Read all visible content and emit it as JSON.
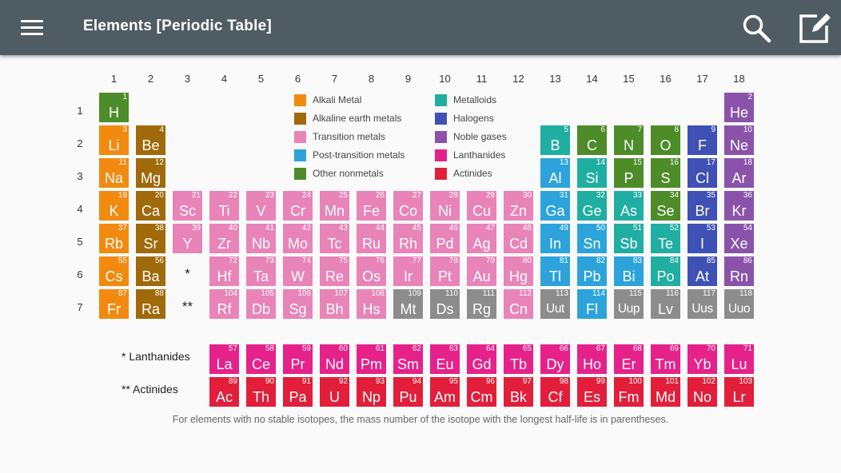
{
  "app_title": "Elements [Periodic Table]",
  "colors": {
    "alkali": "#f28a0f",
    "alkaline": "#a06a0a",
    "transition": "#e884b8",
    "post": "#2da3db",
    "nonmetal": "#4d8c28",
    "metalloid": "#20aea2",
    "halogen": "#3f51b5",
    "noble": "#8a53a9",
    "lanthanide": "#e6218a",
    "actinide": "#e21e3a",
    "unknown": "#8c8c8c"
  },
  "legend": [
    {
      "key": "alkali",
      "label": "Alkali Metal"
    },
    {
      "key": "alkaline",
      "label": "Alkaline earth metals"
    },
    {
      "key": "transition",
      "label": "Transition metals"
    },
    {
      "key": "post",
      "label": "Post-transition metals"
    },
    {
      "key": "nonmetal",
      "label": "Other nonmetals"
    },
    {
      "key": "metalloid",
      "label": "Metalloids"
    },
    {
      "key": "halogen",
      "label": "Halogens"
    },
    {
      "key": "noble",
      "label": "Noble gases"
    },
    {
      "key": "lanthanide",
      "label": "Lanthanides"
    },
    {
      "key": "actinide",
      "label": "Actinides"
    }
  ],
  "group_numbers": [
    "1",
    "2",
    "3",
    "4",
    "5",
    "6",
    "7",
    "8",
    "9",
    "10",
    "11",
    "12",
    "13",
    "14",
    "15",
    "16",
    "17",
    "18"
  ],
  "period_numbers": [
    "1",
    "2",
    "3",
    "4",
    "5",
    "6",
    "7"
  ],
  "placeholders": {
    "lanthanide_mark": "*",
    "actinide_mark": "**"
  },
  "series_labels": {
    "lanthanides": "* Lanthanides",
    "actinides": "** Actinides"
  },
  "footnote": "For elements with no stable isotopes, the mass number of the isotope with the longest half-life is in parentheses.",
  "elements": [
    {
      "n": 1,
      "s": "H",
      "c": "nonmetal",
      "g": 1,
      "p": 1
    },
    {
      "n": 2,
      "s": "He",
      "c": "noble",
      "g": 18,
      "p": 1
    },
    {
      "n": 3,
      "s": "Li",
      "c": "alkali",
      "g": 1,
      "p": 2
    },
    {
      "n": 4,
      "s": "Be",
      "c": "alkaline",
      "g": 2,
      "p": 2
    },
    {
      "n": 5,
      "s": "B",
      "c": "metalloid",
      "g": 13,
      "p": 2
    },
    {
      "n": 6,
      "s": "C",
      "c": "nonmetal",
      "g": 14,
      "p": 2
    },
    {
      "n": 7,
      "s": "N",
      "c": "nonmetal",
      "g": 15,
      "p": 2
    },
    {
      "n": 8,
      "s": "O",
      "c": "nonmetal",
      "g": 16,
      "p": 2
    },
    {
      "n": 9,
      "s": "F",
      "c": "halogen",
      "g": 17,
      "p": 2
    },
    {
      "n": 10,
      "s": "Ne",
      "c": "noble",
      "g": 18,
      "p": 2
    },
    {
      "n": 11,
      "s": "Na",
      "c": "alkali",
      "g": 1,
      "p": 3
    },
    {
      "n": 12,
      "s": "Mg",
      "c": "alkaline",
      "g": 2,
      "p": 3
    },
    {
      "n": 13,
      "s": "Al",
      "c": "post",
      "g": 13,
      "p": 3
    },
    {
      "n": 14,
      "s": "Si",
      "c": "metalloid",
      "g": 14,
      "p": 3
    },
    {
      "n": 15,
      "s": "P",
      "c": "nonmetal",
      "g": 15,
      "p": 3
    },
    {
      "n": 16,
      "s": "S",
      "c": "nonmetal",
      "g": 16,
      "p": 3
    },
    {
      "n": 17,
      "s": "Cl",
      "c": "halogen",
      "g": 17,
      "p": 3
    },
    {
      "n": 18,
      "s": "Ar",
      "c": "noble",
      "g": 18,
      "p": 3
    },
    {
      "n": 19,
      "s": "K",
      "c": "alkali",
      "g": 1,
      "p": 4
    },
    {
      "n": 20,
      "s": "Ca",
      "c": "alkaline",
      "g": 2,
      "p": 4
    },
    {
      "n": 21,
      "s": "Sc",
      "c": "transition",
      "g": 3,
      "p": 4
    },
    {
      "n": 22,
      "s": "Ti",
      "c": "transition",
      "g": 4,
      "p": 4
    },
    {
      "n": 23,
      "s": "V",
      "c": "transition",
      "g": 5,
      "p": 4
    },
    {
      "n": 24,
      "s": "Cr",
      "c": "transition",
      "g": 6,
      "p": 4
    },
    {
      "n": 25,
      "s": "Mn",
      "c": "transition",
      "g": 7,
      "p": 4
    },
    {
      "n": 26,
      "s": "Fe",
      "c": "transition",
      "g": 8,
      "p": 4
    },
    {
      "n": 27,
      "s": "Co",
      "c": "transition",
      "g": 9,
      "p": 4
    },
    {
      "n": 28,
      "s": "Ni",
      "c": "transition",
      "g": 10,
      "p": 4
    },
    {
      "n": 29,
      "s": "Cu",
      "c": "transition",
      "g": 11,
      "p": 4
    },
    {
      "n": 30,
      "s": "Zn",
      "c": "transition",
      "g": 12,
      "p": 4
    },
    {
      "n": 31,
      "s": "Ga",
      "c": "post",
      "g": 13,
      "p": 4
    },
    {
      "n": 32,
      "s": "Ge",
      "c": "metalloid",
      "g": 14,
      "p": 4
    },
    {
      "n": 33,
      "s": "As",
      "c": "metalloid",
      "g": 15,
      "p": 4
    },
    {
      "n": 34,
      "s": "Se",
      "c": "nonmetal",
      "g": 16,
      "p": 4
    },
    {
      "n": 35,
      "s": "Br",
      "c": "halogen",
      "g": 17,
      "p": 4
    },
    {
      "n": 36,
      "s": "Kr",
      "c": "noble",
      "g": 18,
      "p": 4
    },
    {
      "n": 37,
      "s": "Rb",
      "c": "alkali",
      "g": 1,
      "p": 5
    },
    {
      "n": 38,
      "s": "Sr",
      "c": "alkaline",
      "g": 2,
      "p": 5
    },
    {
      "n": 39,
      "s": "Y",
      "c": "transition",
      "g": 3,
      "p": 5
    },
    {
      "n": 40,
      "s": "Zr",
      "c": "transition",
      "g": 4,
      "p": 5
    },
    {
      "n": 41,
      "s": "Nb",
      "c": "transition",
      "g": 5,
      "p": 5
    },
    {
      "n": 42,
      "s": "Mo",
      "c": "transition",
      "g": 6,
      "p": 5
    },
    {
      "n": 43,
      "s": "Tc",
      "c": "transition",
      "g": 7,
      "p": 5
    },
    {
      "n": 44,
      "s": "Ru",
      "c": "transition",
      "g": 8,
      "p": 5
    },
    {
      "n": 45,
      "s": "Rh",
      "c": "transition",
      "g": 9,
      "p": 5
    },
    {
      "n": 46,
      "s": "Pd",
      "c": "transition",
      "g": 10,
      "p": 5
    },
    {
      "n": 47,
      "s": "Ag",
      "c": "transition",
      "g": 11,
      "p": 5
    },
    {
      "n": 48,
      "s": "Cd",
      "c": "transition",
      "g": 12,
      "p": 5
    },
    {
      "n": 49,
      "s": "In",
      "c": "post",
      "g": 13,
      "p": 5
    },
    {
      "n": 50,
      "s": "Sn",
      "c": "post",
      "g": 14,
      "p": 5
    },
    {
      "n": 51,
      "s": "Sb",
      "c": "metalloid",
      "g": 15,
      "p": 5
    },
    {
      "n": 52,
      "s": "Te",
      "c": "metalloid",
      "g": 16,
      "p": 5
    },
    {
      "n": 53,
      "s": "I",
      "c": "halogen",
      "g": 17,
      "p": 5
    },
    {
      "n": 54,
      "s": "Xe",
      "c": "noble",
      "g": 18,
      "p": 5
    },
    {
      "n": 55,
      "s": "Cs",
      "c": "alkali",
      "g": 1,
      "p": 6
    },
    {
      "n": 56,
      "s": "Ba",
      "c": "alkaline",
      "g": 2,
      "p": 6
    },
    {
      "n": 72,
      "s": "Hf",
      "c": "transition",
      "g": 4,
      "p": 6
    },
    {
      "n": 73,
      "s": "Ta",
      "c": "transition",
      "g": 5,
      "p": 6
    },
    {
      "n": 74,
      "s": "W",
      "c": "transition",
      "g": 6,
      "p": 6
    },
    {
      "n": 75,
      "s": "Re",
      "c": "transition",
      "g": 7,
      "p": 6
    },
    {
      "n": 76,
      "s": "Os",
      "c": "transition",
      "g": 8,
      "p": 6
    },
    {
      "n": 77,
      "s": "Ir",
      "c": "transition",
      "g": 9,
      "p": 6
    },
    {
      "n": 78,
      "s": "Pt",
      "c": "transition",
      "g": 10,
      "p": 6
    },
    {
      "n": 79,
      "s": "Au",
      "c": "transition",
      "g": 11,
      "p": 6
    },
    {
      "n": 80,
      "s": "Hg",
      "c": "transition",
      "g": 12,
      "p": 6
    },
    {
      "n": 81,
      "s": "Tl",
      "c": "post",
      "g": 13,
      "p": 6
    },
    {
      "n": 82,
      "s": "Pb",
      "c": "post",
      "g": 14,
      "p": 6
    },
    {
      "n": 83,
      "s": "Bi",
      "c": "post",
      "g": 15,
      "p": 6
    },
    {
      "n": 84,
      "s": "Po",
      "c": "metalloid",
      "g": 16,
      "p": 6
    },
    {
      "n": 85,
      "s": "At",
      "c": "halogen",
      "g": 17,
      "p": 6
    },
    {
      "n": 86,
      "s": "Rn",
      "c": "noble",
      "g": 18,
      "p": 6
    },
    {
      "n": 87,
      "s": "Fr",
      "c": "alkali",
      "g": 1,
      "p": 7
    },
    {
      "n": 88,
      "s": "Ra",
      "c": "alkaline",
      "g": 2,
      "p": 7
    },
    {
      "n": 104,
      "s": "Rf",
      "c": "transition",
      "g": 4,
      "p": 7
    },
    {
      "n": 105,
      "s": "Db",
      "c": "transition",
      "g": 5,
      "p": 7
    },
    {
      "n": 106,
      "s": "Sg",
      "c": "transition",
      "g": 6,
      "p": 7
    },
    {
      "n": 107,
      "s": "Bh",
      "c": "transition",
      "g": 7,
      "p": 7
    },
    {
      "n": 108,
      "s": "Hs",
      "c": "transition",
      "g": 8,
      "p": 7
    },
    {
      "n": 109,
      "s": "Mt",
      "c": "unknown",
      "g": 9,
      "p": 7
    },
    {
      "n": 110,
      "s": "Ds",
      "c": "unknown",
      "g": 10,
      "p": 7
    },
    {
      "n": 111,
      "s": "Rg",
      "c": "unknown",
      "g": 11,
      "p": 7
    },
    {
      "n": 112,
      "s": "Cn",
      "c": "transition",
      "g": 12,
      "p": 7
    },
    {
      "n": 113,
      "s": "Uut",
      "c": "unknown",
      "g": 13,
      "p": 7
    },
    {
      "n": 114,
      "s": "Fl",
      "c": "post",
      "g": 14,
      "p": 7
    },
    {
      "n": 115,
      "s": "Uup",
      "c": "unknown",
      "g": 15,
      "p": 7
    },
    {
      "n": 116,
      "s": "Lv",
      "c": "unknown",
      "g": 16,
      "p": 7
    },
    {
      "n": 117,
      "s": "Uus",
      "c": "unknown",
      "g": 17,
      "p": 7
    },
    {
      "n": 118,
      "s": "Uuo",
      "c": "unknown",
      "g": 18,
      "p": 7
    }
  ],
  "lanthanides": [
    {
      "n": 57,
      "s": "La"
    },
    {
      "n": 58,
      "s": "Ce"
    },
    {
      "n": 59,
      "s": "Pr"
    },
    {
      "n": 60,
      "s": "Nd"
    },
    {
      "n": 61,
      "s": "Pm"
    },
    {
      "n": 62,
      "s": "Sm"
    },
    {
      "n": 63,
      "s": "Eu"
    },
    {
      "n": 64,
      "s": "Gd"
    },
    {
      "n": 65,
      "s": "Tb"
    },
    {
      "n": 66,
      "s": "Dy"
    },
    {
      "n": 67,
      "s": "Ho"
    },
    {
      "n": 68,
      "s": "Er"
    },
    {
      "n": 69,
      "s": "Tm"
    },
    {
      "n": 70,
      "s": "Yb"
    },
    {
      "n": 71,
      "s": "Lu"
    }
  ],
  "actinides": [
    {
      "n": 89,
      "s": "Ac"
    },
    {
      "n": 90,
      "s": "Th"
    },
    {
      "n": 91,
      "s": "Pa"
    },
    {
      "n": 92,
      "s": "U"
    },
    {
      "n": 93,
      "s": "Np"
    },
    {
      "n": 94,
      "s": "Pu"
    },
    {
      "n": 95,
      "s": "Am"
    },
    {
      "n": 96,
      "s": "Cm"
    },
    {
      "n": 97,
      "s": "Bk"
    },
    {
      "n": 98,
      "s": "Cf"
    },
    {
      "n": 99,
      "s": "Es"
    },
    {
      "n": 100,
      "s": "Fm"
    },
    {
      "n": 101,
      "s": "Md"
    },
    {
      "n": 102,
      "s": "No"
    },
    {
      "n": 103,
      "s": "Lr"
    }
  ]
}
